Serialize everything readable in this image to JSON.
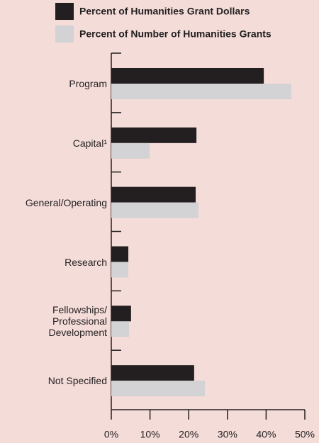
{
  "chart_data": {
    "type": "hbar",
    "categories": [
      "Program",
      "Capital¹",
      "General/Operating",
      "Research",
      "Fellowships/ Professional Development",
      "Not Specified"
    ],
    "series": [
      {
        "name": "Percent of Humanities Grant Dollars",
        "color": "#231f20",
        "values": [
          39.4,
          22.0,
          21.8,
          4.4,
          5.1,
          21.4
        ]
      },
      {
        "name": "Percent of Number of Humanities Grants",
        "color": "#d3d3d5",
        "values": [
          46.5,
          9.9,
          22.5,
          4.4,
          4.6,
          24.2
        ]
      }
    ],
    "xlim": [
      0,
      50
    ],
    "xticks": [
      {
        "value": 0,
        "label": "0%"
      },
      {
        "value": 10,
        "label": "10%"
      },
      {
        "value": 20,
        "label": "20%"
      },
      {
        "value": 30,
        "label": "30%"
      },
      {
        "value": 40,
        "label": "40%"
      },
      {
        "value": 50,
        "label": "50%"
      }
    ],
    "grid": false
  }
}
